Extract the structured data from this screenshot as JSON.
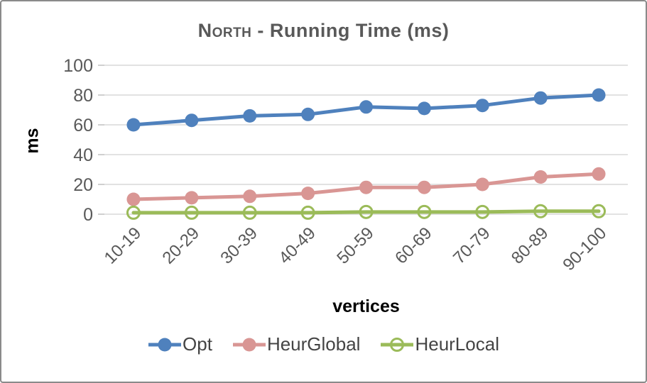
{
  "frame": {
    "background": "#ffffff",
    "border_color": "#8a8a8a"
  },
  "chart_data": {
    "type": "line",
    "title": {
      "smallcaps_part": "North",
      "rest_part": " - Running Time (ms)"
    },
    "xlabel": "vertices",
    "ylabel": "ms",
    "categories": [
      "10-19",
      "20-29",
      "30-39",
      "40-49",
      "50-59",
      "60-69",
      "70-79",
      "80-89",
      "90-100"
    ],
    "yticks": [
      0,
      20,
      40,
      60,
      80,
      100
    ],
    "ylim": [
      0,
      100
    ],
    "grid": true,
    "legend_position": "bottom",
    "colors": {
      "gridline": "#d9d9d9",
      "tick_mark": "#bfbfbf",
      "tick_text": "#595959",
      "title_text": "#595959"
    },
    "series": [
      {
        "name": "Opt",
        "color": "#4f81bd",
        "marker": "filled",
        "values": [
          60,
          63,
          66,
          67,
          72,
          71,
          73,
          78,
          80
        ]
      },
      {
        "name": "HeurGlobal",
        "color": "#d99694",
        "marker": "filled",
        "values": [
          10,
          11,
          12,
          14,
          18,
          18,
          20,
          25,
          27
        ]
      },
      {
        "name": "HeurLocal",
        "color": "#9bbb59",
        "marker": "open",
        "values": [
          1,
          1,
          1,
          1,
          1.5,
          1.5,
          1.5,
          2,
          2
        ]
      }
    ]
  }
}
